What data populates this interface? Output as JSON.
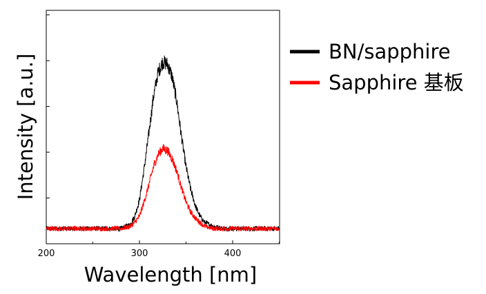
{
  "chart_data": {
    "type": "line",
    "title": "",
    "xlabel": "Wavelength [nm]",
    "ylabel": "Intensity [a.u.]",
    "xlim": [
      200,
      450
    ],
    "ylim": [
      0,
      1
    ],
    "x_ticks": [
      "200",
      "300",
      "400"
    ],
    "x_tick_values": [
      200,
      300,
      400
    ],
    "y_tick_labels_shown": false,
    "grid": false,
    "legend_position": "right-outside-top",
    "series": [
      {
        "name": "BN/sapphire",
        "color": "#000000",
        "x": [
          200,
          220,
          240,
          260,
          280,
          290,
          295,
          300,
          305,
          310,
          315,
          320,
          325,
          330,
          335,
          340,
          345,
          350,
          355,
          360,
          365,
          370,
          380,
          390,
          400,
          420,
          450
        ],
        "y": [
          0.1,
          0.1,
          0.1,
          0.1,
          0.1,
          0.12,
          0.16,
          0.24,
          0.39,
          0.56,
          0.74,
          0.86,
          0.91,
          0.9,
          0.84,
          0.72,
          0.55,
          0.4,
          0.29,
          0.21,
          0.16,
          0.13,
          0.11,
          0.1,
          0.1,
          0.1,
          0.1
        ]
      },
      {
        "name": "Sapphire 基板",
        "color": "#ff0000",
        "x": [
          200,
          220,
          240,
          260,
          280,
          290,
          295,
          300,
          305,
          310,
          315,
          320,
          325,
          330,
          335,
          340,
          345,
          350,
          355,
          360,
          365,
          370,
          380,
          390,
          400,
          420,
          450
        ],
        "y": [
          0.1,
          0.1,
          0.1,
          0.1,
          0.1,
          0.11,
          0.13,
          0.16,
          0.23,
          0.31,
          0.4,
          0.46,
          0.49,
          0.48,
          0.44,
          0.38,
          0.3,
          0.23,
          0.18,
          0.15,
          0.13,
          0.11,
          0.1,
          0.1,
          0.1,
          0.1,
          0.1
        ]
      }
    ]
  }
}
